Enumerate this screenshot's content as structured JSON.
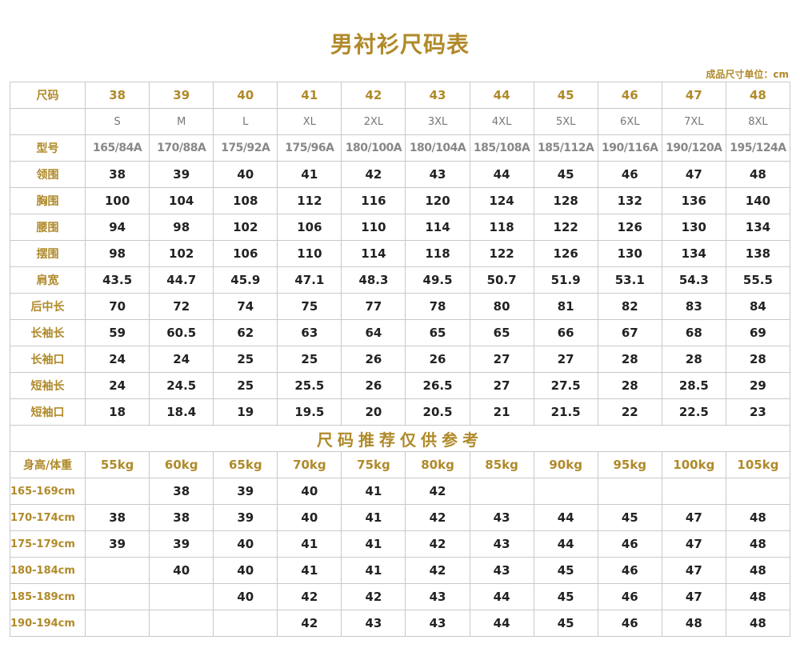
{
  "title": "男衬衫尺码表",
  "unit_note": "成品尺寸单位：cm",
  "accent_color": "#b08a2a",
  "size_table": {
    "header_label": "尺码",
    "sizes": [
      "38",
      "39",
      "40",
      "41",
      "42",
      "43",
      "44",
      "45",
      "46",
      "47",
      "48"
    ],
    "letter_sizes": [
      "S",
      "M",
      "L",
      "XL",
      "2XL",
      "3XL",
      "4XL",
      "5XL",
      "6XL",
      "7XL",
      "8XL"
    ],
    "model_label": "型号",
    "models": [
      "165/84A",
      "170/88A",
      "175/92A",
      "175/96A",
      "180/100A",
      "180/104A",
      "185/108A",
      "185/112A",
      "190/116A",
      "190/120A",
      "195/124A"
    ],
    "rows": [
      {
        "label": "领围",
        "values": [
          "38",
          "39",
          "40",
          "41",
          "42",
          "43",
          "44",
          "45",
          "46",
          "47",
          "48"
        ]
      },
      {
        "label": "胸围",
        "values": [
          "100",
          "104",
          "108",
          "112",
          "116",
          "120",
          "124",
          "128",
          "132",
          "136",
          "140"
        ]
      },
      {
        "label": "腰围",
        "values": [
          "94",
          "98",
          "102",
          "106",
          "110",
          "114",
          "118",
          "122",
          "126",
          "130",
          "134"
        ]
      },
      {
        "label": "摆围",
        "values": [
          "98",
          "102",
          "106",
          "110",
          "114",
          "118",
          "122",
          "126",
          "130",
          "134",
          "138"
        ]
      },
      {
        "label": "肩宽",
        "values": [
          "43.5",
          "44.7",
          "45.9",
          "47.1",
          "48.3",
          "49.5",
          "50.7",
          "51.9",
          "53.1",
          "54.3",
          "55.5"
        ]
      },
      {
        "label": "后中长",
        "values": [
          "70",
          "72",
          "74",
          "75",
          "77",
          "78",
          "80",
          "81",
          "82",
          "83",
          "84"
        ]
      },
      {
        "label": "长袖长",
        "values": [
          "59",
          "60.5",
          "62",
          "63",
          "64",
          "65",
          "65",
          "66",
          "67",
          "68",
          "69"
        ]
      },
      {
        "label": "长袖口",
        "values": [
          "24",
          "24",
          "25",
          "25",
          "26",
          "26",
          "27",
          "27",
          "28",
          "28",
          "28"
        ]
      },
      {
        "label": "短袖长",
        "values": [
          "24",
          "24.5",
          "25",
          "25.5",
          "26",
          "26.5",
          "27",
          "27.5",
          "28",
          "28.5",
          "29"
        ]
      },
      {
        "label": "短袖口",
        "values": [
          "18",
          "18.4",
          "19",
          "19.5",
          "20",
          "20.5",
          "21",
          "21.5",
          "22",
          "22.5",
          "23"
        ]
      }
    ]
  },
  "recommend_table": {
    "banner": "尺码推荐仅供参考",
    "header_label": "身高/体重",
    "weights": [
      "55kg",
      "60kg",
      "65kg",
      "70kg",
      "75kg",
      "80kg",
      "85kg",
      "90kg",
      "95kg",
      "100kg",
      "105kg"
    ],
    "rows": [
      {
        "label": "165-169cm",
        "values": [
          "",
          "38",
          "39",
          "40",
          "41",
          "42",
          "",
          "",
          "",
          "",
          ""
        ]
      },
      {
        "label": "170-174cm",
        "values": [
          "38",
          "38",
          "39",
          "40",
          "41",
          "42",
          "43",
          "44",
          "45",
          "47",
          "48"
        ]
      },
      {
        "label": "175-179cm",
        "values": [
          "39",
          "39",
          "40",
          "41",
          "41",
          "42",
          "43",
          "44",
          "46",
          "47",
          "48"
        ]
      },
      {
        "label": "180-184cm",
        "values": [
          "",
          "40",
          "40",
          "41",
          "41",
          "42",
          "43",
          "45",
          "46",
          "47",
          "48"
        ]
      },
      {
        "label": "185-189cm",
        "values": [
          "",
          "",
          "40",
          "42",
          "42",
          "43",
          "44",
          "45",
          "46",
          "47",
          "48"
        ]
      },
      {
        "label": "190-194cm",
        "values": [
          "",
          "",
          "",
          "42",
          "43",
          "43",
          "44",
          "45",
          "46",
          "48",
          "48"
        ]
      }
    ]
  }
}
